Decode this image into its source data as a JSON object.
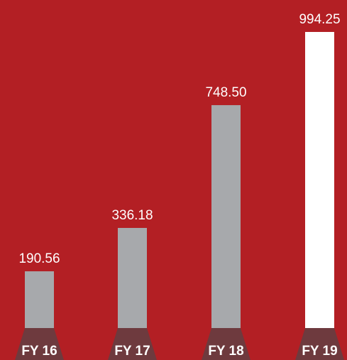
{
  "chart_data": {
    "type": "bar",
    "categories": [
      "FY 16",
      "FY 17",
      "FY 18",
      "FY 19"
    ],
    "values": [
      190.56,
      336.18,
      748.5,
      994.25
    ],
    "value_labels": [
      "190.56",
      "336.18",
      "748.50",
      "994.25"
    ],
    "colors": [
      "#a7a9ac",
      "#a7a9ac",
      "#a7a9ac",
      "#ffffff"
    ],
    "background": "#b31f24"
  }
}
